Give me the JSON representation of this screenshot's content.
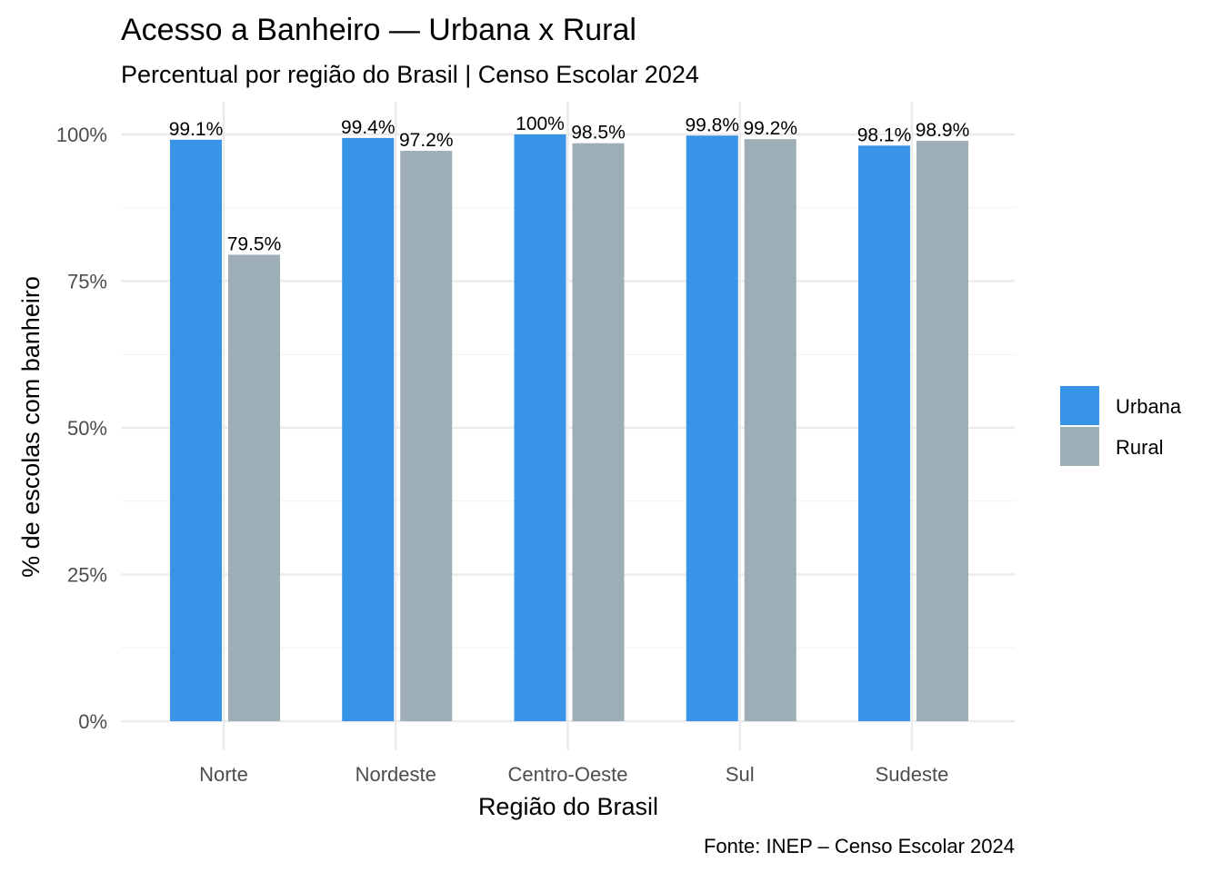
{
  "chart_data": {
    "type": "bar",
    "title": "Acesso a Banheiro — Urbana x Rural",
    "subtitle": "Percentual por região do Brasil | Censo Escolar 2024",
    "xlabel": "Região do Brasil",
    "ylabel": "% de escolas com banheiro",
    "caption": "Fonte: INEP – Censo Escolar 2024",
    "categories": [
      "Norte",
      "Nordeste",
      "Centro-Oeste",
      "Sul",
      "Sudeste"
    ],
    "series": [
      {
        "name": "Urbana",
        "color": "#3794e6",
        "values": [
          99.1,
          99.4,
          100,
          99.8,
          98.1
        ],
        "labels": [
          "99.1%",
          "99.4%",
          "100%",
          "99.8%",
          "98.1%"
        ]
      },
      {
        "name": "Rural",
        "color": "#9daeb6",
        "values": [
          79.5,
          97.2,
          98.5,
          99.2,
          98.9
        ],
        "labels": [
          "79.5%",
          "97.2%",
          "98.5%",
          "99.2%",
          "98.9%"
        ]
      }
    ],
    "ylim": [
      0,
      100
    ],
    "yticks": [
      0,
      25,
      50,
      75,
      100
    ],
    "ytick_labels": [
      "0%",
      "25%",
      "50%",
      "75%",
      "100%"
    ],
    "grid": true,
    "legend_position": "right"
  }
}
